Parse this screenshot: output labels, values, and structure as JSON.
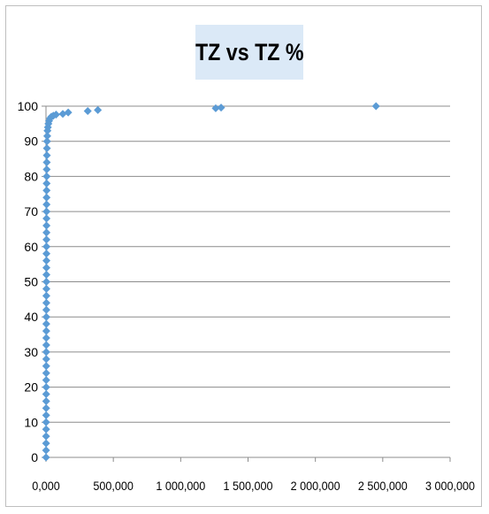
{
  "chart_data": {
    "type": "scatter",
    "title": "TZ vs TZ %",
    "xlabel": "",
    "ylabel": "",
    "xlim": [
      0,
      3000000
    ],
    "ylim": [
      0,
      100
    ],
    "x_ticks": [
      0,
      500000,
      1000000,
      1500000,
      2000000,
      2500000,
      3000000
    ],
    "x_tick_labels": [
      "0,000",
      "500,000",
      "1 000,000",
      "1 500,000",
      "2 000,000",
      "2 500,000",
      "3 000,000"
    ],
    "y_ticks": [
      0,
      10,
      20,
      30,
      40,
      50,
      60,
      70,
      80,
      90,
      100
    ],
    "y_tick_labels": [
      "0",
      "10",
      "20",
      "30",
      "40",
      "50",
      "60",
      "70",
      "80",
      "90",
      "100"
    ],
    "grid": "horizontal",
    "legend": "none",
    "marker": "diamond",
    "series": [
      {
        "color": "#5b9bd5",
        "points": [
          [
            500,
            0
          ],
          [
            700,
            2
          ],
          [
            800,
            4
          ],
          [
            900,
            6
          ],
          [
            1000,
            8
          ],
          [
            1100,
            10
          ],
          [
            1200,
            12
          ],
          [
            1300,
            14
          ],
          [
            1400,
            16
          ],
          [
            1500,
            18
          ],
          [
            1600,
            20
          ],
          [
            1700,
            22
          ],
          [
            1800,
            24
          ],
          [
            1900,
            26
          ],
          [
            2000,
            28
          ],
          [
            2100,
            30
          ],
          [
            2200,
            32
          ],
          [
            2300,
            34
          ],
          [
            2400,
            36
          ],
          [
            2500,
            38
          ],
          [
            2600,
            40
          ],
          [
            2700,
            42
          ],
          [
            2800,
            44
          ],
          [
            2900,
            46
          ],
          [
            3000,
            48
          ],
          [
            3100,
            50
          ],
          [
            3200,
            52
          ],
          [
            3300,
            54
          ],
          [
            3400,
            56
          ],
          [
            3500,
            58
          ],
          [
            3600,
            60
          ],
          [
            3700,
            62
          ],
          [
            3800,
            64
          ],
          [
            3900,
            66
          ],
          [
            4000,
            68
          ],
          [
            4200,
            70
          ],
          [
            4400,
            72
          ],
          [
            4600,
            74
          ],
          [
            4800,
            76
          ],
          [
            5000,
            78
          ],
          [
            5300,
            80
          ],
          [
            5600,
            82
          ],
          [
            6000,
            84
          ],
          [
            6500,
            86
          ],
          [
            7000,
            88
          ],
          [
            8000,
            90
          ],
          [
            9500,
            91.5
          ],
          [
            11000,
            93
          ],
          [
            14000,
            94
          ],
          [
            18000,
            95
          ],
          [
            23000,
            95.8
          ],
          [
            30000,
            96.5
          ],
          [
            40000,
            97
          ],
          [
            55000,
            97.3
          ],
          [
            75000,
            97.6
          ],
          [
            125000,
            97.8
          ],
          [
            165000,
            98.2
          ],
          [
            310000,
            98.6
          ],
          [
            385000,
            98.9
          ],
          [
            1260000,
            99.4
          ],
          [
            1300000,
            99.6
          ],
          [
            2450000,
            100
          ]
        ]
      }
    ]
  }
}
